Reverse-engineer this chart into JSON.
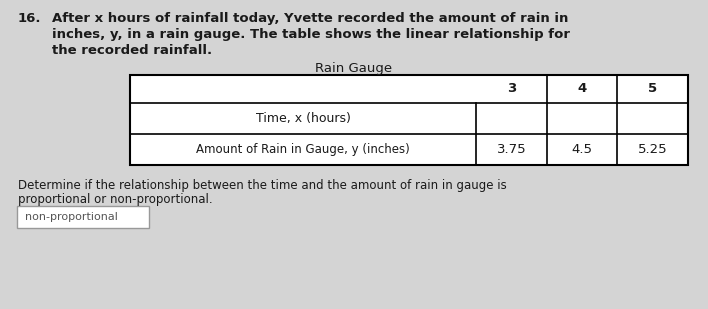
{
  "question_number": "16.",
  "intro_text_line1": "After x hours of rainfall today, Yvette recorded the amount of rain in",
  "intro_text_line2": "inches, y, in a rain gauge. The table shows the linear relationship for",
  "intro_text_line3": "the recorded rainfall.",
  "table_title": "Rain Gauge",
  "row1_label": "Time, x (hours)",
  "row2_label": "Amount of Rain in Gauge, y (inches)",
  "col_values_x": [
    "3",
    "4",
    "5"
  ],
  "col_values_y": [
    "3.75",
    "4.5",
    "5.25"
  ],
  "question_text_line1": "Determine if the relationship between the time and the amount of rain in gauge is",
  "question_text_line2": "proportional or non-proportional.",
  "answer_text": "non-proportional",
  "bg_color": "#d4d4d4",
  "answer_box_color": "#ffffff",
  "text_color": "#1a1a1a",
  "table_bg": "#ffffff",
  "answer_box_border": "#999999",
  "fig_width": 7.08,
  "fig_height": 3.09,
  "dpi": 100
}
